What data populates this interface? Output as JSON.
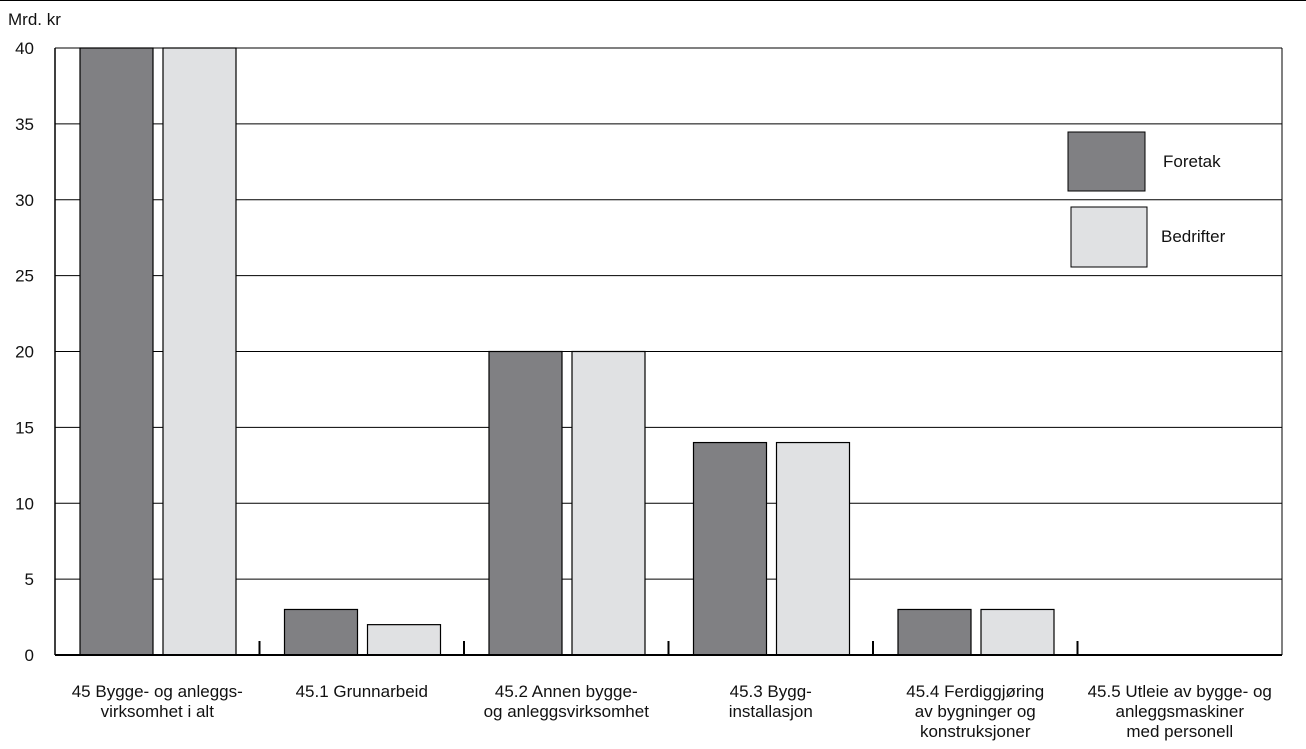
{
  "chart_data": {
    "type": "bar",
    "ylabel": "Mrd. kr",
    "ylim": [
      0,
      40
    ],
    "yticks": [
      "0",
      "5",
      "10",
      "15",
      "20",
      "25",
      "30",
      "35",
      "40"
    ],
    "ytick_values": [
      0,
      5,
      10,
      15,
      20,
      25,
      30,
      35,
      40
    ],
    "grid": true,
    "legend_position": "top-right",
    "categories": [
      [
        "45 Bygge- og anleggs-",
        "virksomhet i alt"
      ],
      [
        "45.1 Grunnarbeid"
      ],
      [
        "45.2 Annen bygge-",
        "og anleggsvirksomhet"
      ],
      [
        "45.3 Bygg-",
        "installasjon"
      ],
      [
        "45.4 Ferdiggjøring",
        "av bygninger og",
        "konstruksjoner"
      ],
      [
        "45.5 Utleie av bygge- og",
        "anleggsmaskiner",
        "med personell"
      ]
    ],
    "series": [
      {
        "name": "Foretak",
        "color": "#808083",
        "values": [
          40,
          3,
          20,
          14,
          3,
          0
        ]
      },
      {
        "name": "Bedrifter",
        "color": "#e0e1e3",
        "values": [
          40,
          2,
          20,
          14,
          3,
          0
        ]
      }
    ]
  }
}
